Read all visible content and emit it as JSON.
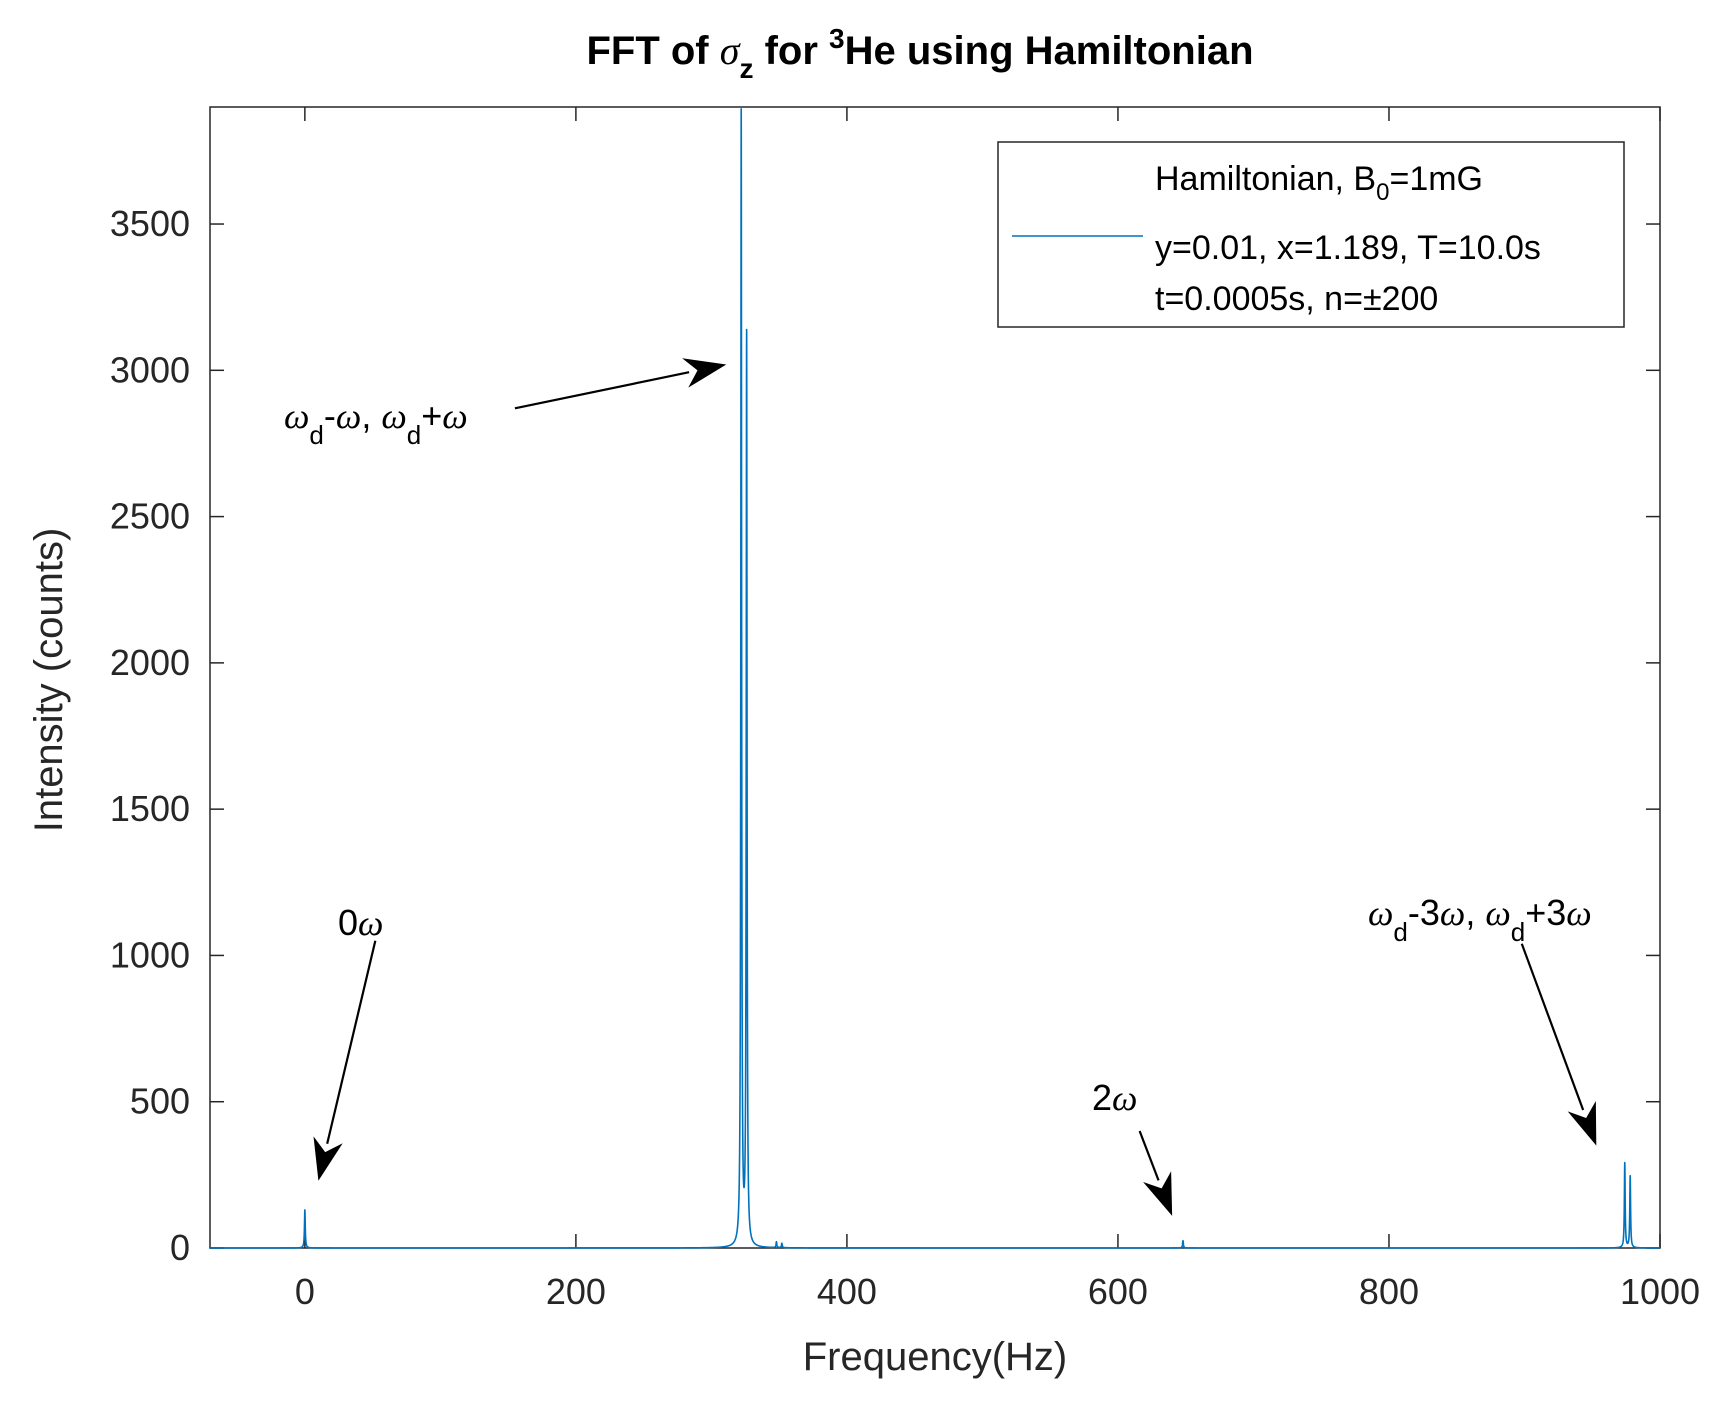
{
  "chart_data": {
    "type": "line",
    "title": {
      "prefix": "FFT of ",
      "symbol": "σ",
      "symbol_sub": "z",
      "mid": " for ",
      "sup": "3",
      "suffix": "He using Hamiltonian"
    },
    "xlabel": "Frequency(Hz)",
    "ylabel": "Intensity (counts)",
    "xlim": [
      -70,
      1000
    ],
    "ylim": [
      0,
      3900
    ],
    "xticks": [
      0,
      200,
      400,
      600,
      800,
      1000
    ],
    "yticks": [
      0,
      500,
      1000,
      1500,
      2000,
      2500,
      3000,
      3500
    ],
    "grid": false,
    "line_color": "#0072BD",
    "legend": {
      "placement": "top-right",
      "line1": {
        "a": "Hamiltonian, B",
        "sub": "0",
        "b": "=1mG"
      },
      "line2": "y=0.01, x=1.189, T=10.0s",
      "line3": "t=0.0005s, n=±200"
    },
    "series": [
      {
        "peaks": [
          {
            "x": 0,
            "y": 130
          },
          {
            "x": 322,
            "y": 3870
          },
          {
            "x": 326,
            "y": 3110
          },
          {
            "x": 348,
            "y": 20
          },
          {
            "x": 352,
            "y": 15
          },
          {
            "x": 648,
            "y": 25
          },
          {
            "x": 974,
            "y": 290
          },
          {
            "x": 978,
            "y": 245
          }
        ]
      }
    ],
    "annotations": [
      {
        "id": "a1",
        "text_parts": [
          {
            "t": "ω",
            "italic": true
          },
          {
            "t": "d",
            "sub": true
          },
          {
            "t": "-"
          },
          {
            "t": "ω",
            "italic": true
          },
          {
            "t": ", "
          },
          {
            "t": "ω",
            "italic": true
          },
          {
            "t": "d",
            "sub": true
          },
          {
            "t": "+"
          },
          {
            "t": "ω",
            "italic": true
          }
        ],
        "tail": [
          155,
          2870
        ],
        "head": [
          311,
          3020
        ]
      },
      {
        "id": "a2",
        "text_parts": [
          {
            "t": "0"
          },
          {
            "t": "ω",
            "italic": true
          }
        ],
        "tail": [
          52,
          1050
        ],
        "head": [
          10,
          230
        ]
      },
      {
        "id": "a3",
        "text_parts": [
          {
            "t": "2"
          },
          {
            "t": "ω",
            "italic": true
          }
        ],
        "tail": [
          616,
          400
        ],
        "head": [
          640,
          110
        ]
      },
      {
        "id": "a4",
        "text_parts": [
          {
            "t": "ω",
            "italic": true
          },
          {
            "t": "d",
            "sub": true
          },
          {
            "t": "-3"
          },
          {
            "t": "ω",
            "italic": true
          },
          {
            "t": ", "
          },
          {
            "t": "ω",
            "italic": true
          },
          {
            "t": "d",
            "sub": true
          },
          {
            "t": "+3"
          },
          {
            "t": "ω",
            "italic": true
          }
        ],
        "tail": [
          898,
          1040
        ],
        "head": [
          953,
          350
        ]
      }
    ]
  }
}
